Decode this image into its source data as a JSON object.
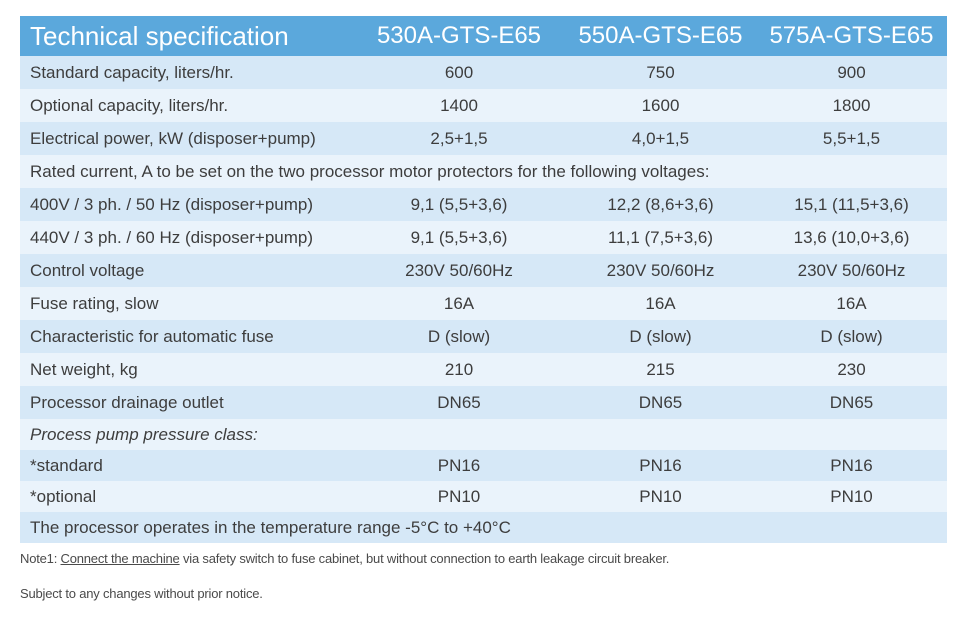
{
  "table": {
    "header": [
      "Technical specification",
      "530A-GTS-E65",
      "550A-GTS-E65",
      "575A-GTS-E65"
    ],
    "rows": [
      {
        "label": "Standard capacity, liters/hr.",
        "values": [
          "600",
          "750",
          "900"
        ]
      },
      {
        "label": "Optional capacity, liters/hr.",
        "values": [
          "1400",
          "1600",
          "1800"
        ]
      },
      {
        "label": "Electrical power, kW (disposer+pump)",
        "values": [
          "2,5+1,5",
          "4,0+1,5",
          "5,5+1,5"
        ]
      },
      {
        "span": "Rated current, A to be set on the two processor motor protectors for the following voltages:"
      },
      {
        "label": "400V / 3 ph. / 50 Hz (disposer+pump)",
        "values": [
          "9,1 (5,5+3,6)",
          "12,2 (8,6+3,6)",
          "15,1 (11,5+3,6)"
        ]
      },
      {
        "label": "440V / 3 ph. / 60 Hz (disposer+pump)",
        "values": [
          "9,1 (5,5+3,6)",
          "11,1 (7,5+3,6)",
          "13,6 (10,0+3,6)"
        ]
      },
      {
        "label": "Control voltage",
        "values": [
          "230V 50/60Hz",
          "230V 50/60Hz",
          "230V 50/60Hz"
        ]
      },
      {
        "label": "Fuse rating, slow",
        "values": [
          "16A",
          "16A",
          "16A"
        ]
      },
      {
        "label": "Characteristic for automatic fuse",
        "values": [
          "D (slow)",
          "D (slow)",
          "D (slow)"
        ]
      },
      {
        "label": "Net weight, kg",
        "values": [
          "210",
          "215",
          "230"
        ]
      },
      {
        "label": "Processor drainage outlet",
        "values": [
          "DN65",
          "DN65",
          "DN65"
        ]
      },
      {
        "span": "Process pump pressure class:"
      },
      {
        "label": "*standard",
        "values": [
          "PN16",
          "PN16",
          "PN16"
        ]
      },
      {
        "label": "*optional",
        "values": [
          "PN10",
          "PN10",
          "PN10"
        ]
      },
      {
        "span": "The processor operates in the temperature range  -5°C to +40°C"
      }
    ]
  },
  "notes": {
    "note1_prefix": "Note1: ",
    "note1_link": "Connect the machine",
    "note1_rest": " via safety switch to fuse cabinet, but without connection to earth leakage circuit breaker.",
    "subject": "Subject to any changes without prior notice."
  },
  "colors": {
    "header": "#5ba8dc",
    "row_dark": "#d6e8f7",
    "row_light": "#eaf3fb"
  }
}
